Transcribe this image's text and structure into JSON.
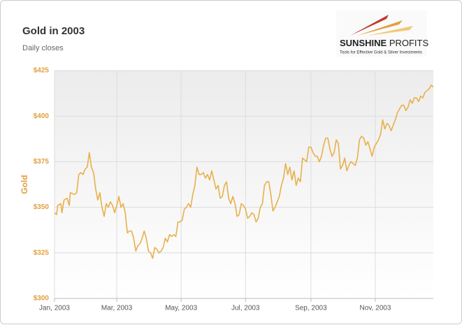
{
  "chart_data": {
    "type": "line",
    "title": "Gold in 2003",
    "subtitle": "Daily closes",
    "y_label": "Gold",
    "logo": {
      "name_bold": "SUNSHINE",
      "name_light": "PROFITS",
      "tagline": "Tools for Effective Gold & Silver Investments"
    },
    "xlim": [
      0,
      359
    ],
    "xticks": [
      {
        "value": 0,
        "label": "Jan, 2003"
      },
      {
        "value": 59,
        "label": "Mar, 2003"
      },
      {
        "value": 120,
        "label": "May, 2003"
      },
      {
        "value": 181,
        "label": "Jul, 2003"
      },
      {
        "value": 243,
        "label": "Sep, 2003"
      },
      {
        "value": 304,
        "label": "Nov, 2003"
      }
    ],
    "ylim": [
      300,
      425
    ],
    "yticks": [
      {
        "value": 300,
        "label": "$300"
      },
      {
        "value": 325,
        "label": "$325"
      },
      {
        "value": 350,
        "label": "$350"
      },
      {
        "value": 375,
        "label": "$375"
      },
      {
        "value": 400,
        "label": "$400"
      },
      {
        "value": 425,
        "label": "$425"
      }
    ],
    "grid": true,
    "x": [
      0,
      2,
      3,
      6,
      7,
      9,
      12,
      14,
      15,
      19,
      21,
      23,
      25,
      27,
      29,
      31,
      33,
      35,
      37,
      39,
      41,
      43,
      45,
      47,
      49,
      51,
      53,
      55,
      57,
      59,
      61,
      63,
      65,
      67,
      69,
      71,
      73,
      75,
      77,
      79,
      81,
      83,
      85,
      87,
      89,
      91,
      93,
      95,
      97,
      99,
      101,
      103,
      105,
      107,
      109,
      111,
      113,
      115,
      117,
      119,
      121,
      123,
      125,
      127,
      129,
      131,
      133,
      135,
      137,
      139,
      141,
      143,
      145,
      147,
      149,
      151,
      153,
      155,
      157,
      159,
      161,
      163,
      165,
      167,
      169,
      171,
      173,
      175,
      177,
      179,
      181,
      183,
      185,
      187,
      189,
      191,
      193,
      195,
      197,
      199,
      201,
      203,
      205,
      207,
      209,
      211,
      213,
      215,
      217,
      219,
      221,
      223,
      225,
      227,
      229,
      231,
      233,
      235,
      237,
      239,
      241,
      243,
      245,
      247,
      249,
      251,
      253,
      255,
      257,
      259,
      261,
      263,
      265,
      267,
      269,
      271,
      273,
      275,
      277,
      279,
      281,
      283,
      285,
      287,
      289,
      291,
      293,
      295,
      297,
      299,
      301,
      303,
      305,
      307,
      309,
      311,
      313,
      315,
      317,
      319,
      321,
      323,
      325,
      327,
      329,
      331,
      333,
      335,
      337,
      339,
      341,
      343,
      345,
      347,
      349,
      351,
      353,
      355,
      357,
      359
    ],
    "series": [
      {
        "name": "Gold",
        "color": "#e8b04a",
        "values": [
          347,
          346,
          351,
          352,
          347,
          354,
          355,
          351,
          358,
          357,
          358,
          368,
          369,
          368,
          371,
          372,
          380,
          372,
          369,
          360,
          354,
          358,
          350,
          345,
          352,
          350,
          353,
          351,
          347,
          351,
          356,
          350,
          352,
          347,
          336,
          337,
          337,
          333,
          326,
          329,
          330,
          333,
          337,
          333,
          326,
          325,
          322,
          328,
          327,
          325,
          326,
          328,
          333,
          331,
          335,
          334,
          335,
          334,
          342,
          342,
          343,
          349,
          350,
          352,
          350,
          357,
          362,
          372,
          368,
          368,
          369,
          366,
          368,
          365,
          370,
          365,
          360,
          362,
          355,
          356,
          362,
          364,
          355,
          352,
          356,
          352,
          345,
          346,
          352,
          351,
          349,
          344,
          345,
          347,
          346,
          342,
          344,
          350,
          352,
          362,
          364,
          364,
          357,
          348,
          350,
          353,
          356,
          362,
          366,
          374,
          368,
          372,
          365,
          370,
          362,
          366,
          364,
          377,
          376,
          375,
          383,
          383,
          380,
          378,
          378,
          375,
          378,
          384,
          388,
          388,
          382,
          378,
          380,
          387,
          385,
          371,
          373,
          377,
          370,
          373,
          375,
          374,
          373,
          377,
          387,
          389,
          388,
          384,
          386,
          382,
          378,
          383,
          385,
          387,
          390,
          398,
          393,
          396,
          395,
          392,
          395,
          398,
          402,
          404,
          406,
          406,
          403,
          405,
          409,
          407,
          410,
          410,
          408,
          411,
          410,
          413,
          414,
          415,
          417,
          416
        ]
      }
    ]
  }
}
